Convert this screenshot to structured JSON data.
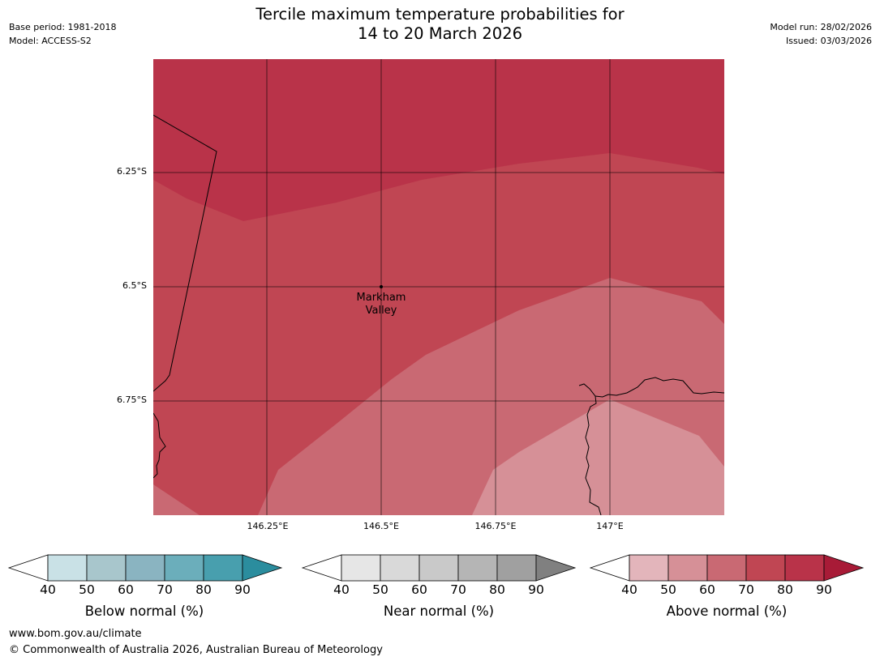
{
  "header": {
    "title_line1": "Tercile maximum temperature probabilities for",
    "title_line2": "14 to 20 March 2026",
    "base_period": "Base period: 1981-2018",
    "model": "Model: ACCESS-S2",
    "model_run": "Model run: 28/02/2026",
    "issued": "Issued: 03/03/2026"
  },
  "map": {
    "lat_ticks": [
      "6.25°S",
      "6.5°S",
      "6.75°S"
    ],
    "lon_ticks": [
      "146.25°E",
      "146.5°E",
      "146.75°E",
      "147°E"
    ],
    "place_line1": "Markham",
    "place_line2": "Valley",
    "probability_zones": [
      {
        "category": "Above normal",
        "range": "80-90",
        "color": "#b93349"
      },
      {
        "category": "Above normal",
        "range": "70-80",
        "color": "#c04653"
      },
      {
        "category": "Above normal",
        "range": "60-70",
        "color": "#c96973"
      },
      {
        "category": "Above normal",
        "range": "50-60",
        "color": "#d69097"
      }
    ]
  },
  "colorbars": [
    {
      "label": "Below normal (%)",
      "ticks": [
        "40",
        "50",
        "60",
        "70",
        "80",
        "90"
      ],
      "colors": [
        "#c9e1e6",
        "#a8c6cc",
        "#8ab4c1",
        "#6baebb",
        "#489fae",
        "#2b8d9e"
      ]
    },
    {
      "label": "Near normal (%)",
      "ticks": [
        "40",
        "50",
        "60",
        "70",
        "80",
        "90"
      ],
      "colors": [
        "#e6e6e6",
        "#d9d9d9",
        "#c9c9c9",
        "#b5b5b5",
        "#a0a0a0",
        "#808080"
      ]
    },
    {
      "label": "Above normal (%)",
      "ticks": [
        "40",
        "50",
        "60",
        "70",
        "80",
        "90"
      ],
      "colors": [
        "#e3b5bb",
        "#d69097",
        "#c96973",
        "#c04653",
        "#b93349",
        "#a81b37"
      ]
    }
  ],
  "footer": {
    "url": "www.bom.gov.au/climate",
    "copyright": "© Commonwealth of Australia 2026, Australian Bureau of Meteorology"
  }
}
